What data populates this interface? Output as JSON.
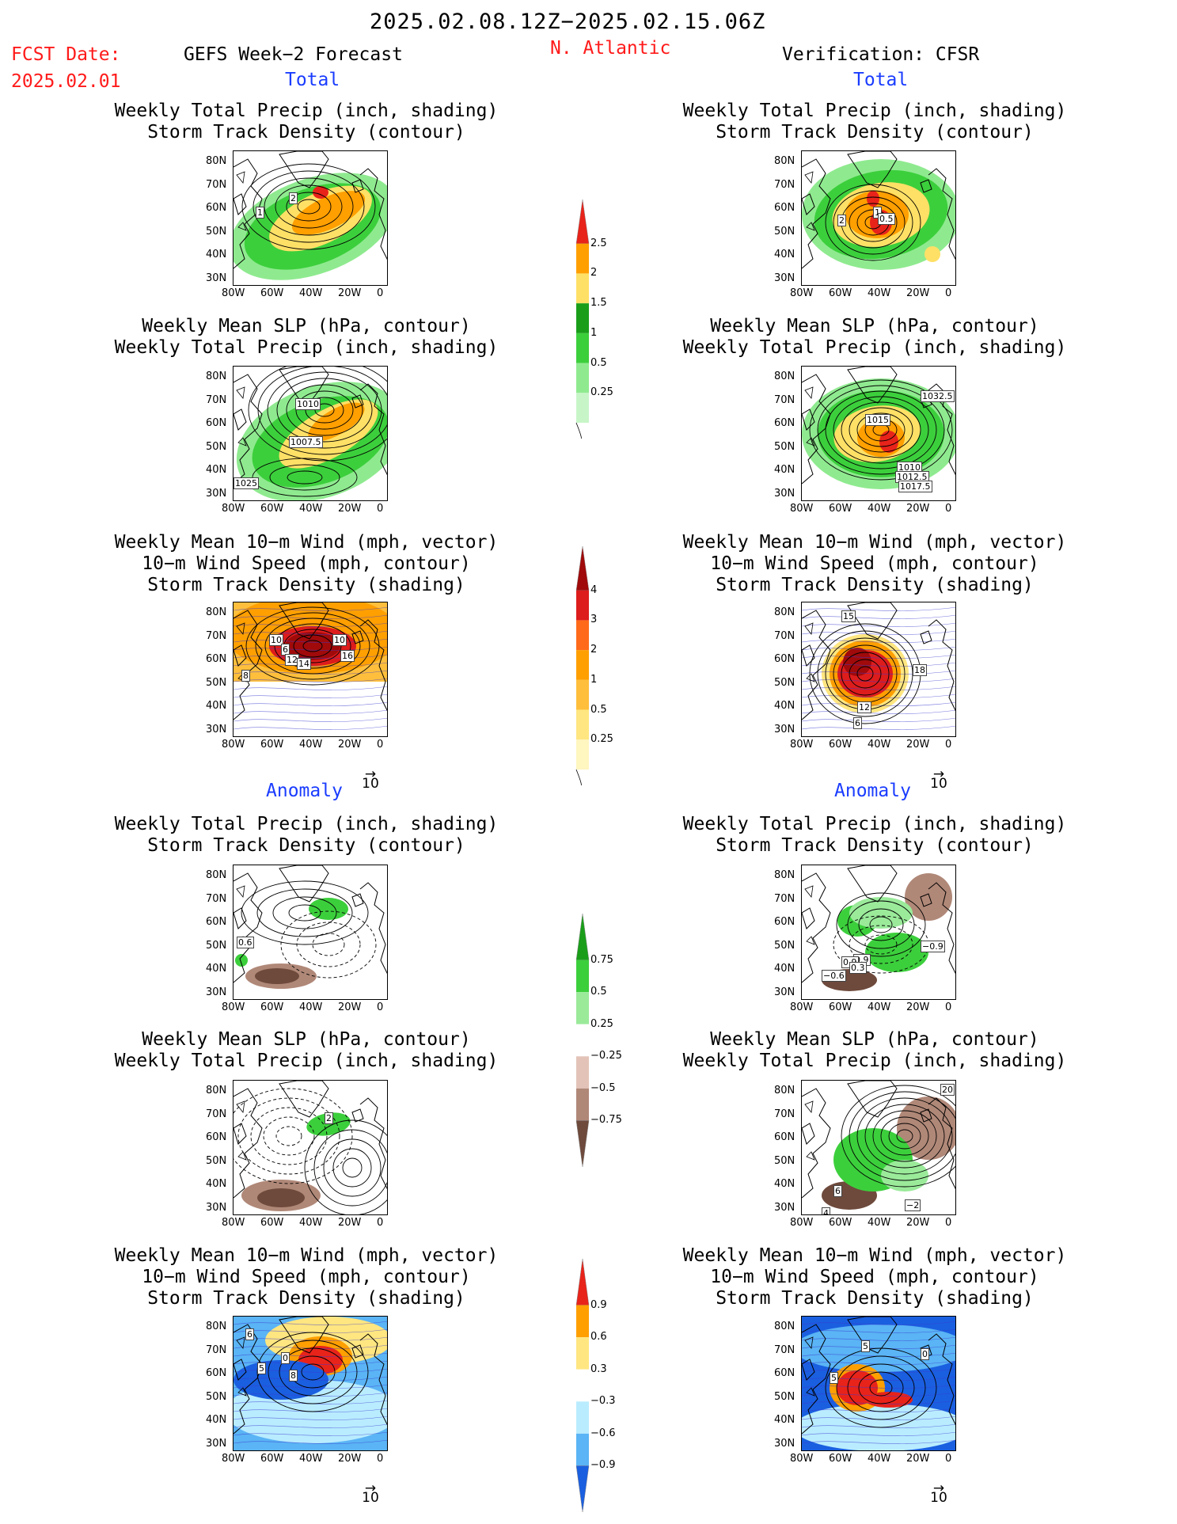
{
  "header": {
    "date_range": "2025.02.08.12Z−2025.02.15.06Z",
    "fcst_label": "FCST Date:",
    "fcst_date": "2025.02.01",
    "left_title": "GEFS Week−2 Forecast",
    "region": "N. Atlantic",
    "right_title": "Verification: CFSR"
  },
  "sections": {
    "total_label": "Total",
    "anomaly_label": "Anomaly"
  },
  "panel_titles": {
    "precip_track": [
      "Weekly Total Precip (inch, shading)",
      "Storm Track Density (contour)"
    ],
    "slp_precip": [
      "Weekly Mean SLP (hPa, contour)",
      "Weekly Total Precip (inch, shading)"
    ],
    "wind_track": [
      "Weekly Mean 10−m Wind (mph, vector)",
      "10−m Wind Speed (mph, contour)",
      "Storm Track Density (shading)"
    ]
  },
  "axes": {
    "lat_ticks": [
      "80N",
      "70N",
      "60N",
      "50N",
      "40N",
      "30N"
    ],
    "lon_ticks": [
      "80W",
      "60W",
      "40W",
      "20W",
      "0"
    ]
  },
  "vector_ref": "10",
  "colorbars": {
    "precip_total": {
      "labels": [
        "2.5",
        "2",
        "1.5",
        "1",
        "0.5",
        "0.25"
      ],
      "colors": [
        "#e8231a",
        "#ff9f00",
        "#ffe066",
        "#1a9e1a",
        "#3ccf3c",
        "#8fea8f",
        "#c8f5c8"
      ]
    },
    "track_total": {
      "labels": [
        "4",
        "3",
        "2",
        "1",
        "0.5",
        "0.25"
      ],
      "colors": [
        "#a00a0a",
        "#dd1c1c",
        "#ff6a1a",
        "#ff9f00",
        "#ffbf3c",
        "#ffe680",
        "#fff6c0"
      ]
    },
    "precip_anom": {
      "labels": [
        "0.75",
        "0.5",
        "0.25",
        "−0.25",
        "−0.5",
        "−0.75"
      ],
      "colors": [
        "#1a9e1a",
        "#3ccf3c",
        "#9aea9a",
        "#ffffff",
        "#e3c3b8",
        "#b08878",
        "#6e4a3c"
      ]
    },
    "track_anom": {
      "labels": [
        "0.9",
        "0.6",
        "0.3",
        "−0.3",
        "−0.6",
        "−0.9"
      ],
      "colors": [
        "#e8231a",
        "#ff9f00",
        "#ffe680",
        "#ffffff",
        "#b9ecff",
        "#5ab4f5",
        "#1a5fe0"
      ]
    }
  },
  "contour_labels": {
    "p1": [
      "2",
      "1"
    ],
    "p2": [
      "1",
      "2",
      "0.5"
    ],
    "p3": [
      "1010",
      "1007.5",
      "1025"
    ],
    "p4": [
      "1032.5",
      "1015",
      "1010",
      "1012.5",
      "1017.5"
    ],
    "p5": [
      "10",
      "6",
      "10",
      "12",
      "14",
      "16",
      "8"
    ],
    "p6": [
      "15",
      "18",
      "12",
      "6"
    ],
    "p7": [
      "0.6"
    ],
    "p8": [
      "0.9",
      "0.9",
      "0.3",
      "−0.6",
      "−0.9"
    ],
    "p9": [
      "2"
    ],
    "p10": [
      "20",
      "6",
      "4",
      "−2"
    ],
    "p11": [
      "5",
      "6",
      "8",
      "0"
    ],
    "p12": [
      "5",
      "0",
      "5"
    ]
  }
}
